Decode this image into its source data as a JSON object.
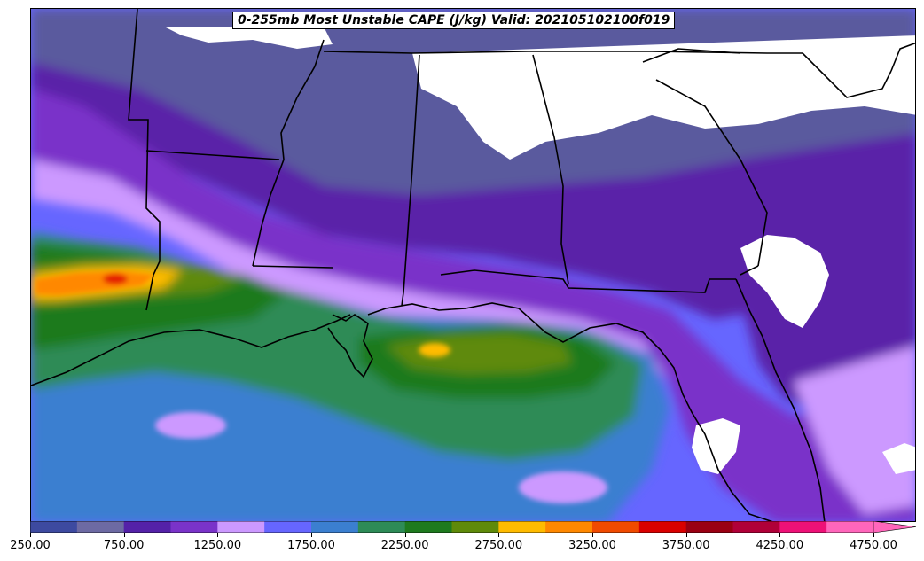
{
  "title": "0-255mb Most Unstable CAPE (J/kg) Valid: 202105102100f019",
  "colorbar": {
    "min": 250,
    "max": 5000,
    "step": 250,
    "tick_labels": [
      "250.00",
      "750.00",
      "1250.00",
      "1750.00",
      "2250.00",
      "2750.00",
      "3250.00",
      "3750.00",
      "4250.00",
      "4750.00"
    ],
    "tick_values": [
      250,
      750,
      1250,
      1750,
      2250,
      2750,
      3250,
      3750,
      4250,
      4750
    ],
    "colors": [
      "#3d4aa0",
      "#6d6aa3",
      "#5421a8",
      "#7a33c9",
      "#cc99ff",
      "#6666ff",
      "#3b7fd0",
      "#2e8b57",
      "#1e7a1e",
      "#5f8a0a",
      "#ffbb00",
      "#ff8800",
      "#f04a00",
      "#d90000",
      "#9a0012",
      "#b00038",
      "#ee1177",
      "#ff66bb"
    ],
    "extend": "max"
  },
  "colors": {
    "no_data": "#ffffff",
    "borders": "#000000"
  }
}
